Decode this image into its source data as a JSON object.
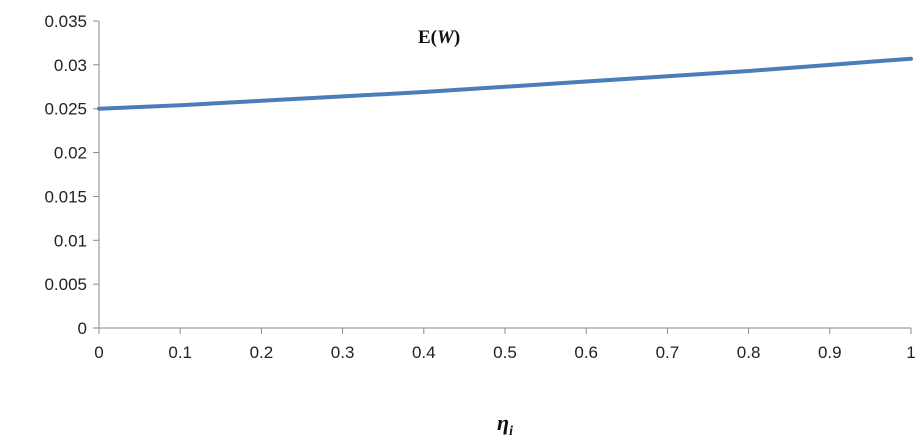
{
  "chart_data": {
    "type": "line",
    "title": "",
    "series_label_text": "E(",
    "series_label_var": "W",
    "series_label_close": ")",
    "xlabel": "η",
    "xlabel_sub": "i",
    "ylabel": "",
    "x": [
      0,
      0.1,
      0.2,
      0.3,
      0.4,
      0.5,
      0.6,
      0.7,
      0.8,
      0.9,
      1
    ],
    "series": [
      {
        "values": [
          0.025,
          0.0254,
          0.0259,
          0.0264,
          0.0269,
          0.0275,
          0.0281,
          0.0287,
          0.0293,
          0.03,
          0.0307
        ]
      }
    ],
    "xlim": [
      0,
      1
    ],
    "ylim": [
      0,
      0.035
    ],
    "xticks": [
      "0",
      "0.1",
      "0.2",
      "0.3",
      "0.4",
      "0.5",
      "0.6",
      "0.7",
      "0.8",
      "0.9",
      "1"
    ],
    "yticks": [
      "0",
      "0.005",
      "0.01",
      "0.015",
      "0.02",
      "0.025",
      "0.03",
      "0.035"
    ],
    "grid": false,
    "line_color": "#4a7ebb"
  }
}
